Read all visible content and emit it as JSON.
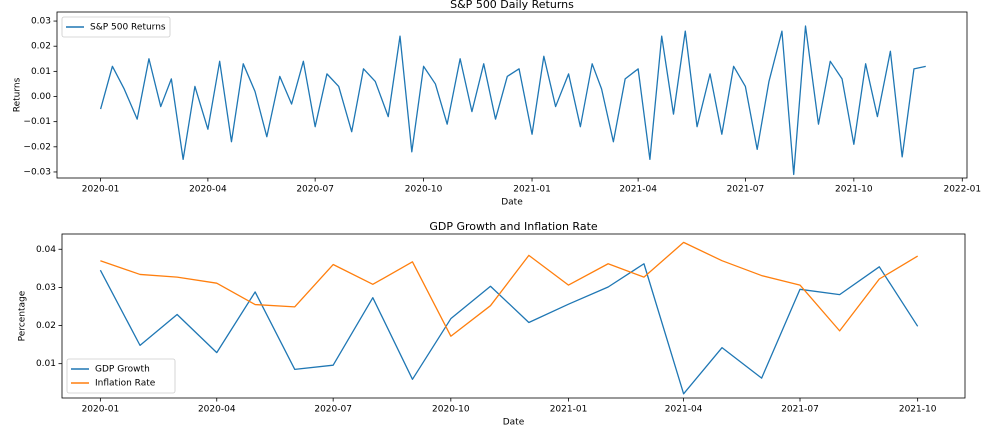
{
  "chart_data": [
    {
      "type": "line",
      "title": "S&P 500 Daily Returns",
      "xlabel": "Date",
      "ylabel": "Returns",
      "x": [
        "2020-01-01",
        "2020-01-11",
        "2020-01-21",
        "2020-02-01",
        "2020-02-11",
        "2020-02-21",
        "2020-03-01",
        "2020-03-11",
        "2020-03-21",
        "2020-04-01",
        "2020-04-11",
        "2020-04-21",
        "2020-05-01",
        "2020-05-11",
        "2020-05-21",
        "2020-06-01",
        "2020-06-11",
        "2020-06-21",
        "2020-07-01",
        "2020-07-11",
        "2020-07-21",
        "2020-08-01",
        "2020-08-11",
        "2020-08-21",
        "2020-09-01",
        "2020-09-11",
        "2020-09-21",
        "2020-10-01",
        "2020-10-11",
        "2020-10-21",
        "2020-11-01",
        "2020-11-11",
        "2020-11-21",
        "2020-12-01",
        "2020-12-11",
        "2020-12-21",
        "2021-01-01",
        "2021-01-11",
        "2021-01-21",
        "2021-02-01",
        "2021-02-11",
        "2021-02-21",
        "2021-03-01",
        "2021-03-11",
        "2021-03-21",
        "2021-04-01",
        "2021-04-11",
        "2021-04-21",
        "2021-05-01",
        "2021-05-11",
        "2021-05-21",
        "2021-06-01",
        "2021-06-11",
        "2021-06-21",
        "2021-07-01",
        "2021-07-11",
        "2021-07-21",
        "2021-08-01",
        "2021-08-11",
        "2021-08-21",
        "2021-09-01",
        "2021-09-11",
        "2021-09-21",
        "2021-10-01",
        "2021-10-11",
        "2021-10-21",
        "2021-11-01",
        "2021-11-11",
        "2021-11-21",
        "2021-12-01"
      ],
      "series": [
        {
          "name": "S&P 500 Returns",
          "color": "#1f77b4",
          "values": [
            -0.005,
            0.012,
            0.003,
            -0.009,
            0.015,
            -0.004,
            0.007,
            -0.025,
            0.004,
            -0.013,
            0.014,
            -0.018,
            0.013,
            0.002,
            -0.016,
            0.008,
            -0.003,
            0.014,
            -0.012,
            0.009,
            0.004,
            -0.014,
            0.011,
            0.006,
            -0.008,
            0.024,
            -0.022,
            0.012,
            0.005,
            -0.011,
            0.015,
            -0.006,
            0.013,
            -0.009,
            0.008,
            0.011,
            -0.015,
            0.016,
            -0.004,
            0.009,
            -0.012,
            0.013,
            0.003,
            -0.018,
            0.007,
            0.011,
            -0.025,
            0.024,
            -0.007,
            0.026,
            -0.012,
            0.009,
            -0.015,
            0.012,
            0.004,
            -0.021,
            0.006,
            0.026,
            -0.031,
            0.028,
            -0.011,
            0.014,
            0.007,
            -0.019,
            0.013,
            -0.008,
            0.018,
            -0.024,
            0.011,
            0.012
          ]
        }
      ],
      "xlim": [
        "2019-11-25",
        "2022-01-05"
      ],
      "xticks": [
        "2020-01",
        "2020-04",
        "2020-07",
        "2020-10",
        "2021-01",
        "2021-04",
        "2021-07",
        "2021-10",
        "2022-01"
      ],
      "ylim": [
        -0.0324,
        0.0336
      ],
      "yticks": [
        {
          "value": -0.03,
          "label": "−0.03"
        },
        {
          "value": -0.02,
          "label": "−0.02"
        },
        {
          "value": -0.01,
          "label": "−0.01"
        },
        {
          "value": 0,
          "label": "0.00"
        },
        0.01,
        0.02,
        0.03
      ],
      "legend": "upper left"
    },
    {
      "type": "line",
      "title": "GDP Growth and Inflation Rate",
      "xlabel": "Date",
      "ylabel": "Percentage",
      "x": [
        "2020-01",
        "2020-02",
        "2020-03",
        "2020-04",
        "2020-05",
        "2020-06",
        "2020-07",
        "2020-08",
        "2020-09",
        "2020-10",
        "2020-11",
        "2020-12",
        "2021-01",
        "2021-02",
        "2021-03",
        "2021-04",
        "2021-05",
        "2021-06",
        "2021-07",
        "2021-08",
        "2021-09",
        "2021-10"
      ],
      "series": [
        {
          "name": "GDP Growth",
          "color": "#1f77b4",
          "values": [
            0.0345,
            0.0148,
            0.0229,
            0.0129,
            0.0288,
            0.0085,
            0.0096,
            0.0273,
            0.0059,
            0.0218,
            0.0303,
            0.0208,
            0.0256,
            0.0301,
            0.0362,
            0.0021,
            0.0142,
            0.0062,
            0.0295,
            0.0281,
            0.0354,
            0.0198
          ]
        },
        {
          "name": "Inflation Rate",
          "color": "#ff7f0e",
          "values": [
            0.037,
            0.0334,
            0.0327,
            0.0311,
            0.0255,
            0.0249,
            0.036,
            0.0308,
            0.0367,
            0.0172,
            0.0252,
            0.0384,
            0.0306,
            0.0362,
            0.0327,
            0.0418,
            0.037,
            0.0331,
            0.0306,
            0.0186,
            0.0322,
            0.0382
          ]
        }
      ],
      "xlim": [
        "2019-12-02",
        "2021-11-07"
      ],
      "xticks": [
        "2020-01",
        "2020-04",
        "2020-07",
        "2020-10",
        "2021-01",
        "2021-04",
        "2021-07",
        "2021-10"
      ],
      "ylim": [
        0.001,
        0.044
      ],
      "yticks": [
        0.01,
        0.02,
        0.03,
        0.04
      ],
      "legend": "lower left"
    }
  ]
}
